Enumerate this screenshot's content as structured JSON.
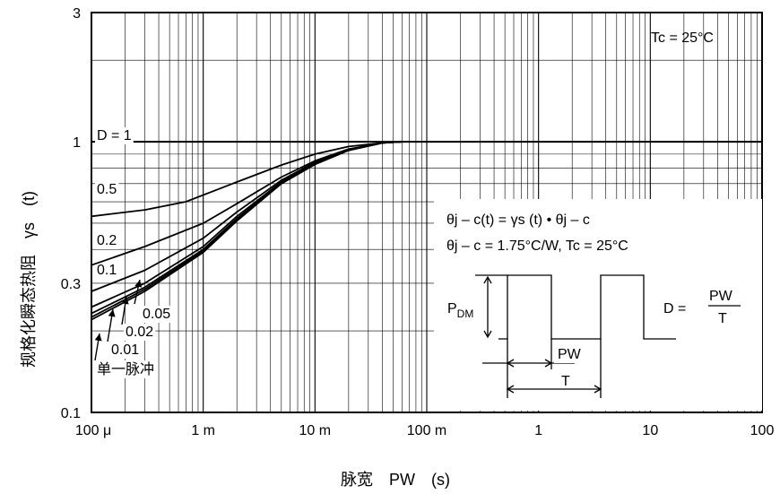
{
  "chart_data": {
    "type": "line",
    "title": "",
    "xlabel": "脉宽　PW　(s)",
    "ylabel": "规格化瞬态热阻　γs　(t)",
    "xscale": "log",
    "yscale": "log",
    "xlim": [
      0.0001,
      100
    ],
    "ylim": [
      0.1,
      3
    ],
    "grid": true,
    "x_ticks": [
      {
        "value": 0.0001,
        "label": "100 μ"
      },
      {
        "value": 0.001,
        "label": "1 m"
      },
      {
        "value": 0.01,
        "label": "10 m"
      },
      {
        "value": 0.1,
        "label": "100 m"
      },
      {
        "value": 1,
        "label": "1"
      },
      {
        "value": 10,
        "label": "10"
      },
      {
        "value": 100,
        "label": "100"
      }
    ],
    "y_ticks": [
      {
        "value": 0.1,
        "label": "0.1"
      },
      {
        "value": 0.3,
        "label": "0.3"
      },
      {
        "value": 1,
        "label": "1"
      },
      {
        "value": 3,
        "label": "3"
      }
    ],
    "series": [
      {
        "name": "D = 1",
        "x": [
          0.0001,
          100
        ],
        "y": [
          1.0,
          1.0
        ]
      },
      {
        "name": "0.5",
        "x": [
          0.0001,
          0.0003,
          0.0007,
          0.002,
          0.005,
          0.01,
          0.02,
          0.04,
          0.06
        ],
        "y": [
          0.53,
          0.56,
          0.6,
          0.71,
          0.82,
          0.9,
          0.96,
          0.99,
          1.0
        ]
      },
      {
        "name": "0.2",
        "x": [
          0.0001,
          0.0003,
          0.001,
          0.002,
          0.005,
          0.01,
          0.02,
          0.04,
          0.06
        ],
        "y": [
          0.35,
          0.41,
          0.5,
          0.59,
          0.74,
          0.85,
          0.94,
          0.99,
          1.0
        ]
      },
      {
        "name": "0.1",
        "x": [
          0.0001,
          0.0003,
          0.001,
          0.002,
          0.005,
          0.01,
          0.02,
          0.04,
          0.06
        ],
        "y": [
          0.28,
          0.335,
          0.44,
          0.55,
          0.72,
          0.84,
          0.93,
          0.99,
          1.0
        ]
      },
      {
        "name": "0.05",
        "x": [
          0.0001,
          0.0003,
          0.001,
          0.002,
          0.005,
          0.01,
          0.02,
          0.04,
          0.06
        ],
        "y": [
          0.245,
          0.3,
          0.41,
          0.53,
          0.71,
          0.83,
          0.93,
          0.99,
          1.0
        ]
      },
      {
        "name": "0.02",
        "x": [
          0.0001,
          0.0003,
          0.001,
          0.002,
          0.005,
          0.01,
          0.02,
          0.04,
          0.06
        ],
        "y": [
          0.232,
          0.29,
          0.4,
          0.52,
          0.705,
          0.83,
          0.93,
          0.99,
          1.0
        ]
      },
      {
        "name": "0.01",
        "x": [
          0.0001,
          0.0003,
          0.001,
          0.002,
          0.005,
          0.01,
          0.02,
          0.04,
          0.06
        ],
        "y": [
          0.225,
          0.285,
          0.395,
          0.515,
          0.7,
          0.825,
          0.93,
          0.99,
          1.0
        ]
      },
      {
        "name": "单一脉冲",
        "x": [
          0.0001,
          0.0003,
          0.001,
          0.002,
          0.005,
          0.01,
          0.02,
          0.04,
          0.06
        ],
        "y": [
          0.22,
          0.28,
          0.39,
          0.51,
          0.7,
          0.825,
          0.93,
          0.99,
          1.0
        ]
      }
    ],
    "annotations": {
      "condition": "Tc = 25°C",
      "formula_1": "θj – c(t) = γs (t) • θj – c",
      "formula_2": "θj – c = 1.75°C/W, Tc = 25°C",
      "pdm_label": "P",
      "pdm_sub": "DM",
      "d_label": "D =",
      "d_num": "PW",
      "d_den": "T",
      "pw_label": "PW",
      "t_label": "T"
    }
  }
}
